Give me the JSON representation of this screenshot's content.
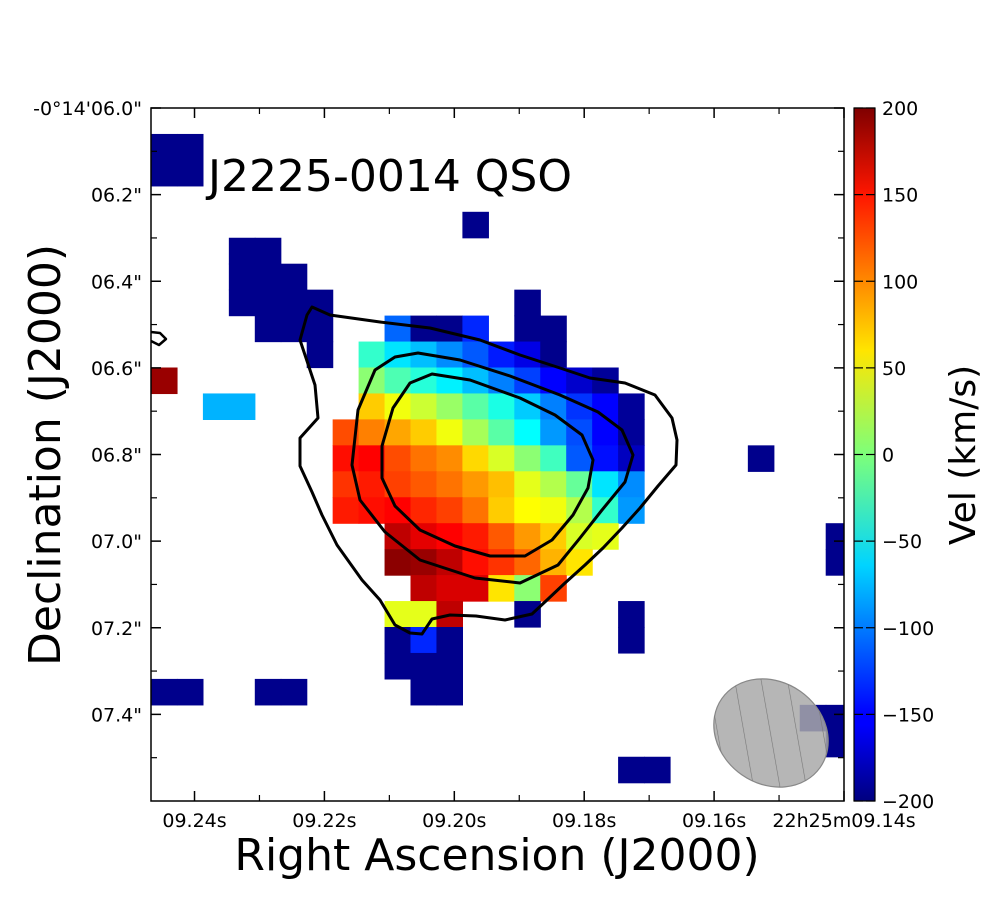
{
  "chart_data": {
    "type": "heatmap",
    "title": "J2225-0014 QSO",
    "xlabel": "Right Ascension (J2000)",
    "ylabel": "Declination (J2000)",
    "colorbar_label": "Vel (km/s)",
    "colormap": "jet",
    "vlim": [
      -200,
      200
    ],
    "colorbar_ticks": [
      "200",
      "150",
      "100",
      "50",
      "0",
      "−50",
      "−100",
      "−150",
      "−200"
    ],
    "xlim_s": [
      9.2467,
      9.14
    ],
    "ylim_arcsec": [
      6.0,
      7.6
    ],
    "x_ticks": [
      {
        "value": 9.24,
        "label": "09.24s"
      },
      {
        "value": 9.22,
        "label": "09.22s"
      },
      {
        "value": 9.2,
        "label": "09.20s"
      },
      {
        "value": 9.18,
        "label": "09.18s"
      },
      {
        "value": 9.16,
        "label": "09.16s"
      },
      {
        "value": 9.14,
        "label": "22h25m09.14s"
      }
    ],
    "y_ticks": [
      {
        "value": 6.0,
        "label": "-0°14'06.0\""
      },
      {
        "value": 6.2,
        "label": "06.2\""
      },
      {
        "value": 6.4,
        "label": "06.4\""
      },
      {
        "value": 6.6,
        "label": "06.6\""
      },
      {
        "value": 6.8,
        "label": "06.8\""
      },
      {
        "value": 7.0,
        "label": "07.0\""
      },
      {
        "value": 7.2,
        "label": "07.2\""
      },
      {
        "value": 7.4,
        "label": "07.4\""
      }
    ],
    "pixel_grid": {
      "cols": 27,
      "rows": 27,
      "ra_start_s": 9.2467,
      "ra_step_s": -0.00395,
      "dec_start_arcsec": 6.0,
      "dec_step_arcsec": 0.0593
    },
    "cells": [
      [
        0,
        1,
        -195
      ],
      [
        1,
        1,
        -195
      ],
      [
        0,
        2,
        -195
      ],
      [
        1,
        2,
        -195
      ],
      [
        12,
        4,
        -195
      ],
      [
        3,
        5,
        -195
      ],
      [
        4,
        5,
        -195
      ],
      [
        3,
        6,
        -195
      ],
      [
        4,
        6,
        -195
      ],
      [
        5,
        6,
        -195
      ],
      [
        3,
        7,
        -195
      ],
      [
        4,
        7,
        -195
      ],
      [
        5,
        7,
        -195
      ],
      [
        6,
        7,
        -195
      ],
      [
        14,
        7,
        -195
      ],
      [
        4,
        8,
        -195
      ],
      [
        5,
        8,
        -195
      ],
      [
        6,
        8,
        -195
      ],
      [
        9,
        8,
        -110
      ],
      [
        10,
        8,
        -195
      ],
      [
        11,
        8,
        -195
      ],
      [
        12,
        8,
        -135
      ],
      [
        14,
        8,
        -195
      ],
      [
        15,
        8,
        -195
      ],
      [
        6,
        9,
        -195
      ],
      [
        8,
        9,
        -30
      ],
      [
        9,
        9,
        -60
      ],
      [
        10,
        9,
        -75
      ],
      [
        11,
        9,
        -95
      ],
      [
        12,
        9,
        -115
      ],
      [
        13,
        9,
        -140
      ],
      [
        14,
        9,
        -160
      ],
      [
        15,
        9,
        -195
      ],
      [
        0,
        10,
        190
      ],
      [
        8,
        10,
        5
      ],
      [
        9,
        10,
        -20
      ],
      [
        10,
        10,
        -35
      ],
      [
        11,
        10,
        -55
      ],
      [
        12,
        10,
        -75
      ],
      [
        13,
        10,
        -100
      ],
      [
        14,
        10,
        -125
      ],
      [
        15,
        10,
        -150
      ],
      [
        16,
        10,
        -170
      ],
      [
        17,
        10,
        -190
      ],
      [
        2,
        11,
        -80
      ],
      [
        3,
        11,
        -80
      ],
      [
        8,
        11,
        70
      ],
      [
        9,
        11,
        45
      ],
      [
        10,
        11,
        30
      ],
      [
        11,
        11,
        10
      ],
      [
        12,
        11,
        -15
      ],
      [
        13,
        11,
        -40
      ],
      [
        14,
        11,
        -70
      ],
      [
        15,
        11,
        -100
      ],
      [
        16,
        11,
        -130
      ],
      [
        17,
        11,
        -150
      ],
      [
        18,
        11,
        -190
      ],
      [
        7,
        12,
        120
      ],
      [
        8,
        12,
        100
      ],
      [
        9,
        12,
        85
      ],
      [
        10,
        12,
        70
      ],
      [
        11,
        12,
        45
      ],
      [
        12,
        12,
        15
      ],
      [
        13,
        12,
        -15
      ],
      [
        14,
        12,
        -50
      ],
      [
        15,
        12,
        -90
      ],
      [
        16,
        12,
        -120
      ],
      [
        17,
        12,
        -150
      ],
      [
        18,
        12,
        -190
      ],
      [
        7,
        13,
        145
      ],
      [
        8,
        13,
        150
      ],
      [
        9,
        13,
        120
      ],
      [
        10,
        13,
        105
      ],
      [
        11,
        13,
        95
      ],
      [
        12,
        13,
        65
      ],
      [
        13,
        13,
        35
      ],
      [
        14,
        13,
        5
      ],
      [
        15,
        13,
        -25
      ],
      [
        16,
        13,
        -115
      ],
      [
        17,
        13,
        -145
      ],
      [
        18,
        13,
        -175
      ],
      [
        23,
        13,
        -195
      ],
      [
        7,
        14,
        130
      ],
      [
        8,
        14,
        140
      ],
      [
        9,
        14,
        125
      ],
      [
        10,
        14,
        115
      ],
      [
        11,
        14,
        105
      ],
      [
        12,
        14,
        90
      ],
      [
        13,
        14,
        75
      ],
      [
        14,
        14,
        40
      ],
      [
        15,
        14,
        20
      ],
      [
        16,
        14,
        -10
      ],
      [
        17,
        14,
        -60
      ],
      [
        18,
        14,
        -95
      ],
      [
        7,
        15,
        140
      ],
      [
        8,
        15,
        145
      ],
      [
        9,
        15,
        150
      ],
      [
        10,
        15,
        135
      ],
      [
        11,
        15,
        125
      ],
      [
        12,
        15,
        105
      ],
      [
        13,
        15,
        70
      ],
      [
        14,
        15,
        50
      ],
      [
        15,
        15,
        45
      ],
      [
        16,
        15,
        20
      ],
      [
        17,
        15,
        -30
      ],
      [
        18,
        15,
        -90
      ],
      [
        9,
        16,
        175
      ],
      [
        10,
        16,
        160
      ],
      [
        11,
        16,
        150
      ],
      [
        12,
        16,
        140
      ],
      [
        13,
        16,
        115
      ],
      [
        14,
        16,
        90
      ],
      [
        15,
        16,
        70
      ],
      [
        16,
        16,
        35
      ],
      [
        17,
        16,
        40
      ],
      [
        26,
        16,
        -195
      ],
      [
        9,
        17,
        195
      ],
      [
        10,
        17,
        190
      ],
      [
        11,
        17,
        175
      ],
      [
        12,
        17,
        145
      ],
      [
        13,
        17,
        130
      ],
      [
        14,
        17,
        110
      ],
      [
        15,
        17,
        80
      ],
      [
        16,
        17,
        60
      ],
      [
        26,
        17,
        -195
      ],
      [
        10,
        18,
        175
      ],
      [
        11,
        18,
        165
      ],
      [
        12,
        18,
        165
      ],
      [
        13,
        18,
        60
      ],
      [
        14,
        18,
        5
      ],
      [
        15,
        18,
        125
      ],
      [
        9,
        19,
        40
      ],
      [
        10,
        19,
        40
      ],
      [
        11,
        19,
        175
      ],
      [
        14,
        19,
        -195
      ],
      [
        18,
        19,
        -195
      ],
      [
        9,
        20,
        -195
      ],
      [
        10,
        20,
        -135
      ],
      [
        11,
        20,
        -195
      ],
      [
        18,
        20,
        -195
      ],
      [
        9,
        21,
        -195
      ],
      [
        10,
        21,
        -195
      ],
      [
        11,
        21,
        -195
      ],
      [
        0,
        22,
        -195
      ],
      [
        1,
        22,
        -195
      ],
      [
        4,
        22,
        -195
      ],
      [
        5,
        22,
        -195
      ],
      [
        10,
        22,
        -195
      ],
      [
        11,
        22,
        -195
      ],
      [
        25,
        23,
        -195
      ],
      [
        26,
        23,
        -195
      ],
      [
        26,
        24,
        -195
      ],
      [
        18,
        25,
        -195
      ],
      [
        19,
        25,
        -195
      ]
    ],
    "contour_levels": 3,
    "beam": "hatched grey ellipse"
  }
}
